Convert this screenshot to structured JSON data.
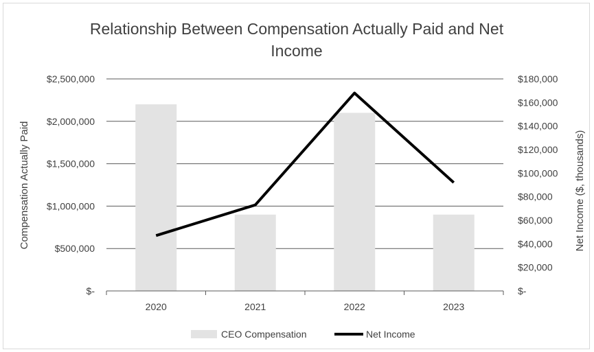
{
  "chart_data": {
    "type": "bar+line",
    "title_line1": "Relationship Between Compensation Actually Paid and Net",
    "title_line2": "Income",
    "categories": [
      "2020",
      "2021",
      "2022",
      "2023"
    ],
    "y_left": {
      "label": "Compensation Actually Paid",
      "range": [
        0,
        2500000
      ],
      "ticks": [
        "$-",
        "$500,000",
        "$1,000,000",
        "$1,500,000",
        "$2,000,000",
        "$2,500,000"
      ]
    },
    "y_right": {
      "label": "Net Income ($, thousands)",
      "range": [
        0,
        180000
      ],
      "ticks": [
        "$-",
        "$20,000",
        "$40,000",
        "$60,000",
        "$80,000",
        "$100,000",
        "$120,000",
        "$140,000",
        "$160,000",
        "$180,000"
      ]
    },
    "series": [
      {
        "name": "CEO Compensation",
        "type": "bar",
        "axis": "left",
        "values": [
          2200000,
          900000,
          2100000,
          900000
        ],
        "color": "#e3e3e3"
      },
      {
        "name": "Net Income",
        "type": "line",
        "axis": "right",
        "values": [
          47000,
          73000,
          168000,
          92000
        ],
        "color": "#000000"
      }
    ],
    "grid": true,
    "legend": "bottom"
  }
}
